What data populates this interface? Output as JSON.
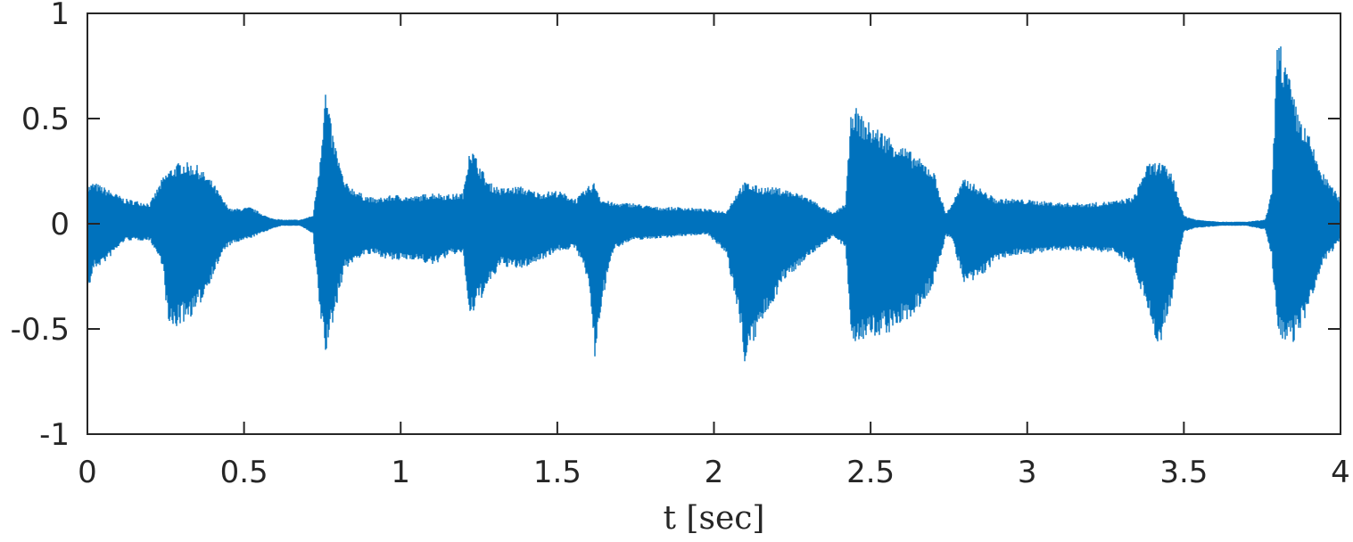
{
  "chart_data": {
    "type": "line",
    "title": "",
    "xlabel": "t [sec]",
    "ylabel": "",
    "xlim": [
      0,
      4
    ],
    "ylim": [
      -1,
      1
    ],
    "xticks": [
      0,
      0.5,
      1,
      1.5,
      2,
      2.5,
      3,
      3.5,
      4
    ],
    "xtick_labels": [
      "0",
      "0.5",
      "1",
      "1.5",
      "2",
      "2.5",
      "3",
      "3.5",
      "4"
    ],
    "yticks": [
      -1,
      -0.5,
      0,
      0.5,
      1
    ],
    "ytick_labels": [
      "-1",
      "-0.5",
      "0",
      "0.5",
      "1"
    ],
    "grid": false,
    "line_color": "#0072BD",
    "series": [
      {
        "envelope_x": [
          0,
          0.02,
          0.06,
          0.12,
          0.2,
          0.24,
          0.26,
          0.3,
          0.35,
          0.4,
          0.44,
          0.46,
          0.52,
          0.58,
          0.62,
          0.68,
          0.72,
          0.74,
          0.76,
          0.78,
          0.82,
          0.88,
          0.92,
          0.98,
          1.04,
          1.1,
          1.16,
          1.2,
          1.22,
          1.24,
          1.28,
          1.32,
          1.38,
          1.44,
          1.5,
          1.56,
          1.6,
          1.62,
          1.64,
          1.68,
          1.74,
          1.82,
          1.9,
          1.98,
          2.04,
          2.08,
          2.1,
          2.14,
          2.22,
          2.3,
          2.38,
          2.42,
          2.44,
          2.48,
          2.56,
          2.64,
          2.7,
          2.74,
          2.76,
          2.8,
          2.84,
          2.9,
          2.96,
          3.04,
          3.12,
          3.2,
          3.28,
          3.34,
          3.38,
          3.42,
          3.46,
          3.5,
          3.54,
          3.62,
          3.7,
          3.76,
          3.78,
          3.8,
          3.82,
          3.86,
          3.9,
          3.94,
          4
        ],
        "upper": [
          0.18,
          0.2,
          0.17,
          0.12,
          0.1,
          0.22,
          0.26,
          0.3,
          0.28,
          0.2,
          0.1,
          0.07,
          0.08,
          0.03,
          0.02,
          0.02,
          0.04,
          0.28,
          0.65,
          0.45,
          0.2,
          0.14,
          0.12,
          0.14,
          0.13,
          0.15,
          0.14,
          0.15,
          0.38,
          0.32,
          0.2,
          0.17,
          0.18,
          0.15,
          0.16,
          0.12,
          0.18,
          0.2,
          0.12,
          0.1,
          0.1,
          0.08,
          0.08,
          0.07,
          0.06,
          0.17,
          0.2,
          0.18,
          0.17,
          0.13,
          0.05,
          0.1,
          0.58,
          0.5,
          0.42,
          0.33,
          0.26,
          0.05,
          0.1,
          0.22,
          0.18,
          0.12,
          0.12,
          0.11,
          0.1,
          0.1,
          0.11,
          0.13,
          0.28,
          0.3,
          0.25,
          0.04,
          0.02,
          0.01,
          0.01,
          0.02,
          0.15,
          0.92,
          0.8,
          0.55,
          0.42,
          0.25,
          0.12
        ],
        "lower": [
          -0.35,
          -0.22,
          -0.18,
          -0.08,
          -0.08,
          -0.2,
          -0.52,
          -0.48,
          -0.42,
          -0.25,
          -0.12,
          -0.1,
          -0.07,
          -0.03,
          -0.01,
          -0.01,
          -0.05,
          -0.4,
          -0.63,
          -0.5,
          -0.22,
          -0.15,
          -0.15,
          -0.18,
          -0.17,
          -0.2,
          -0.15,
          -0.14,
          -0.47,
          -0.4,
          -0.3,
          -0.2,
          -0.22,
          -0.18,
          -0.13,
          -0.12,
          -0.28,
          -0.66,
          -0.4,
          -0.12,
          -0.08,
          -0.07,
          -0.06,
          -0.05,
          -0.15,
          -0.45,
          -0.68,
          -0.52,
          -0.28,
          -0.16,
          -0.06,
          -0.12,
          -0.56,
          -0.56,
          -0.52,
          -0.44,
          -0.3,
          -0.06,
          -0.07,
          -0.3,
          -0.27,
          -0.18,
          -0.15,
          -0.14,
          -0.13,
          -0.13,
          -0.14,
          -0.2,
          -0.4,
          -0.6,
          -0.38,
          -0.04,
          -0.02,
          -0.01,
          -0.01,
          -0.03,
          -0.15,
          -0.55,
          -0.6,
          -0.55,
          -0.42,
          -0.2,
          -0.08
        ]
      }
    ]
  }
}
